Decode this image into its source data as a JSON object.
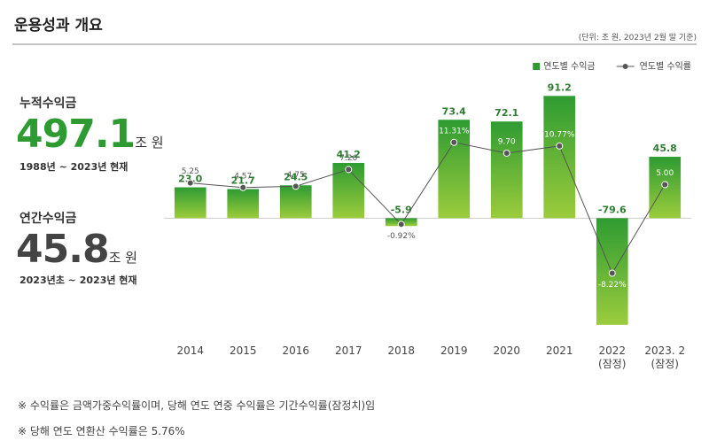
{
  "header": {
    "title": "운용성과 개요",
    "unit_note": "(단위: 조 원, 2023년 2월 말 기준)"
  },
  "summary": [
    {
      "label": "누적수익금",
      "value": "497.1",
      "unit": "조 원",
      "period": "1988년 ~ 2023년 현재"
    },
    {
      "label": "연간수익금",
      "value": "45.8",
      "unit": "조 원",
      "period": "2023년초 ~ 2023년 현재"
    }
  ],
  "chart_data": {
    "type": "bar",
    "categories": [
      "2014",
      "2015",
      "2016",
      "2017",
      "2018",
      "2019",
      "2020",
      "2021",
      "2022\n(잠정)",
      "2023. 2\n(잠정)"
    ],
    "series": [
      {
        "name": "연도별 수익금",
        "type": "bar",
        "color": "#2e9b32",
        "gradient_end": "#9ccc3c",
        "values": [
          23.0,
          21.7,
          24.5,
          41.2,
          -5.9,
          73.4,
          72.1,
          91.2,
          -79.6,
          45.8
        ],
        "value_labels": [
          "23.0",
          "21.7",
          "24.5",
          "41.2",
          "-5.9",
          "73.4",
          "72.1",
          "91.2",
          "-79.6",
          "45.8"
        ]
      },
      {
        "name": "연도별 수익률",
        "type": "line",
        "axis": "y2",
        "color": "#555555",
        "values": [
          5.25,
          4.57,
          4.75,
          7.26,
          -0.92,
          11.31,
          9.7,
          10.77,
          -8.22,
          5.0
        ],
        "value_labels": [
          "5.25",
          "4.57",
          "4.75",
          "7.26",
          "-0.92%",
          "11.31%",
          "9.70",
          "10.77%",
          "-8.22%",
          "5.00"
        ]
      }
    ],
    "ylim": [
      -85,
      100
    ],
    "y2lim": [
      -17,
      20
    ],
    "legend": "top-right"
  },
  "notes": [
    "※ 수익률은 금액가중수익률이며, 당해 연도 연중 수익률은 기간수익률(잠정치)임",
    "※ 당해 연도 연환산 수익률은 5.76%"
  ]
}
